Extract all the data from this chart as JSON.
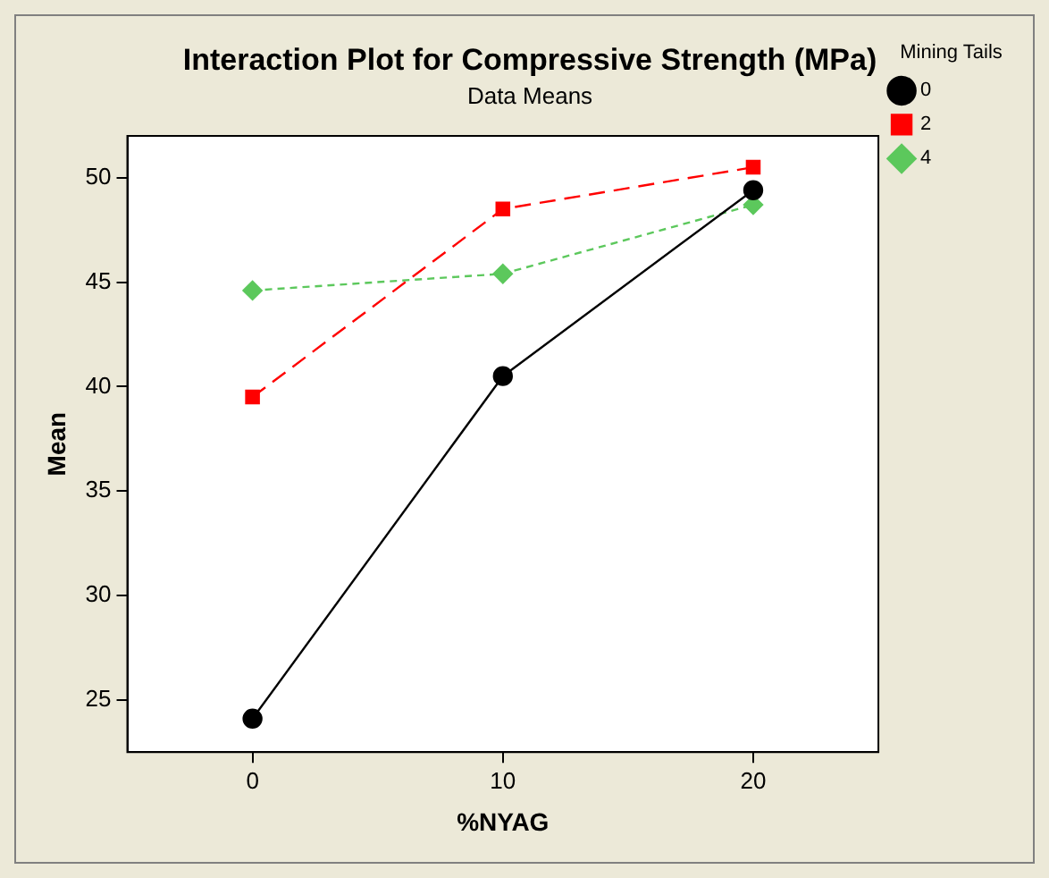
{
  "chart_data": {
    "type": "line",
    "title": "Interaction Plot for Compressive Strength (MPa)",
    "subtitle": "Data Means",
    "xlabel": "%NYAG",
    "ylabel": "Mean",
    "legend_title": "Mining Tails",
    "legend": "right",
    "grid": false,
    "x": [
      0,
      10,
      20
    ],
    "xlim": [
      -5,
      25
    ],
    "xticks": [
      0,
      10,
      20
    ],
    "ylim": [
      22.5,
      52
    ],
    "yticks": [
      25,
      30,
      35,
      40,
      45,
      50
    ],
    "series": [
      {
        "name": "0",
        "color": "#000000",
        "values": [
          24.1,
          40.5,
          49.4
        ],
        "marker": "circle",
        "line_style": "solid"
      },
      {
        "name": "2",
        "color": "#ff0000",
        "values": [
          39.5,
          48.5,
          50.5
        ],
        "marker": "square",
        "line_style": "dashed"
      },
      {
        "name": "4",
        "color": "#5cc85c",
        "values": [
          44.6,
          45.4,
          48.7
        ],
        "marker": "diamond",
        "line_style": "dotted"
      }
    ]
  }
}
